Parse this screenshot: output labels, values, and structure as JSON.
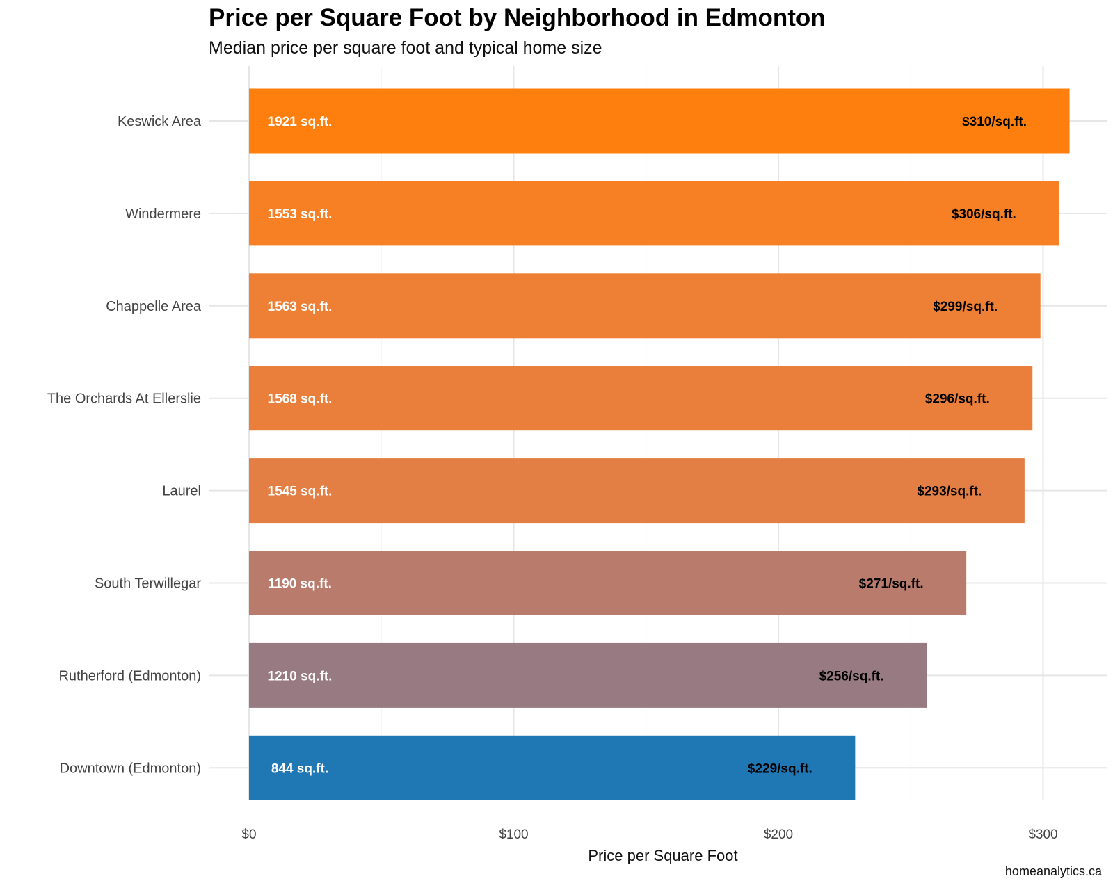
{
  "chart_data": {
    "type": "bar",
    "orientation": "horizontal",
    "title": "Price per Square Foot by Neighborhood in Edmonton",
    "subtitle": "Median price per square foot and typical home size",
    "xlabel": "Price per Square Foot",
    "ylabel": "",
    "caption": "homeanalytics.ca",
    "xlim": [
      0,
      325
    ],
    "x_ticks": [
      0,
      100,
      200,
      300
    ],
    "x_tick_labels": [
      "$0",
      "$100",
      "$200",
      "$300"
    ],
    "grid": true,
    "legend": "none",
    "categories": [
      "Keswick Area",
      "Windermere",
      "Chappelle Area",
      "The Orchards At Ellerslie",
      "Laurel",
      "South Terwillegar",
      "Rutherford (Edmonton)",
      "Downtown (Edmonton)"
    ],
    "values": [
      310,
      306,
      299,
      296,
      293,
      271,
      256,
      229
    ],
    "value_labels": [
      "$310/sq.ft.",
      "$306/sq.ft.",
      "$299/sq.ft.",
      "$296/sq.ft.",
      "$293/sq.ft.",
      "$271/sq.ft.",
      "$256/sq.ft.",
      "$229/sq.ft."
    ],
    "home_size_sqft": [
      1921,
      1553,
      1563,
      1568,
      1545,
      1190,
      1210,
      844
    ],
    "home_size_labels": [
      "1921 sq.ft.",
      "1553 sq.ft.",
      "1563 sq.ft.",
      "1568 sq.ft.",
      "1545 sq.ft.",
      "1190 sq.ft.",
      "1210 sq.ft.",
      "844 sq.ft."
    ],
    "colors": [
      "#FF7F0E",
      "#F78024",
      "#EE8035",
      "#EA7F3B",
      "#E37F44",
      "#B97B6C",
      "#987A83",
      "#1F77B4"
    ]
  }
}
